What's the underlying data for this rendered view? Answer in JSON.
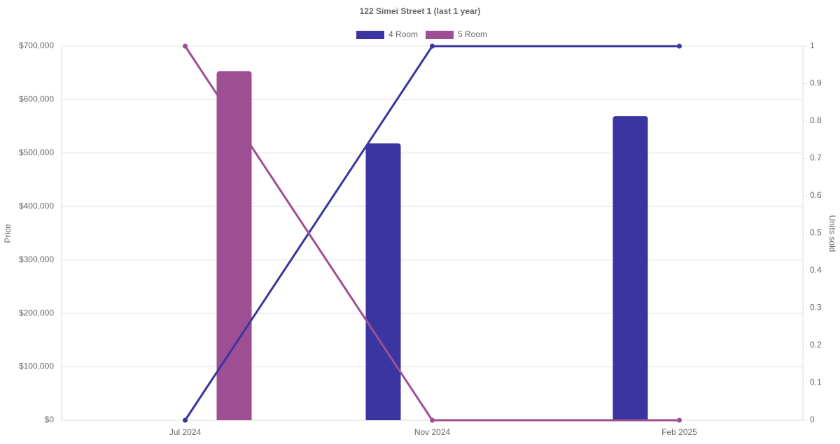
{
  "chart_data": {
    "type": "bar-line",
    "title": "122 Simei Street 1 (last 1 year)",
    "categories": [
      "Jul 2024",
      "Nov 2024",
      "Feb 2025"
    ],
    "y_label": "Price",
    "y2_label": "Units sold",
    "ylim": [
      0,
      700000
    ],
    "yticks": [
      {
        "value": 0,
        "label": "$0"
      },
      {
        "value": 100000,
        "label": "$100,000"
      },
      {
        "value": 200000,
        "label": "$200,000"
      },
      {
        "value": 300000,
        "label": "$300,000"
      },
      {
        "value": 400000,
        "label": "$400,000"
      },
      {
        "value": 500000,
        "label": "$500,000"
      },
      {
        "value": 600000,
        "label": "$600,000"
      },
      {
        "value": 700000,
        "label": "$700,000"
      }
    ],
    "y2lim": [
      0,
      1
    ],
    "y2ticks": [
      0,
      0.1,
      0.2,
      0.3,
      0.4,
      0.5,
      0.6,
      0.7,
      0.8,
      0.9,
      1
    ],
    "grid": true,
    "series": [
      {
        "name": "4 Room",
        "color": "#3a35a0",
        "kind": "bar",
        "values": [
          null,
          518000,
          569000
        ]
      },
      {
        "name": "5 Room",
        "color": "#9e4f94",
        "kind": "bar",
        "values": [
          653000,
          null,
          null
        ]
      },
      {
        "color": "#3a35a0",
        "kind": "line",
        "axis": "y2",
        "values": [
          0,
          1,
          1
        ]
      },
      {
        "color": "#9e4f94",
        "kind": "line",
        "axis": "y2",
        "values": [
          1,
          0,
          0
        ]
      }
    ]
  }
}
